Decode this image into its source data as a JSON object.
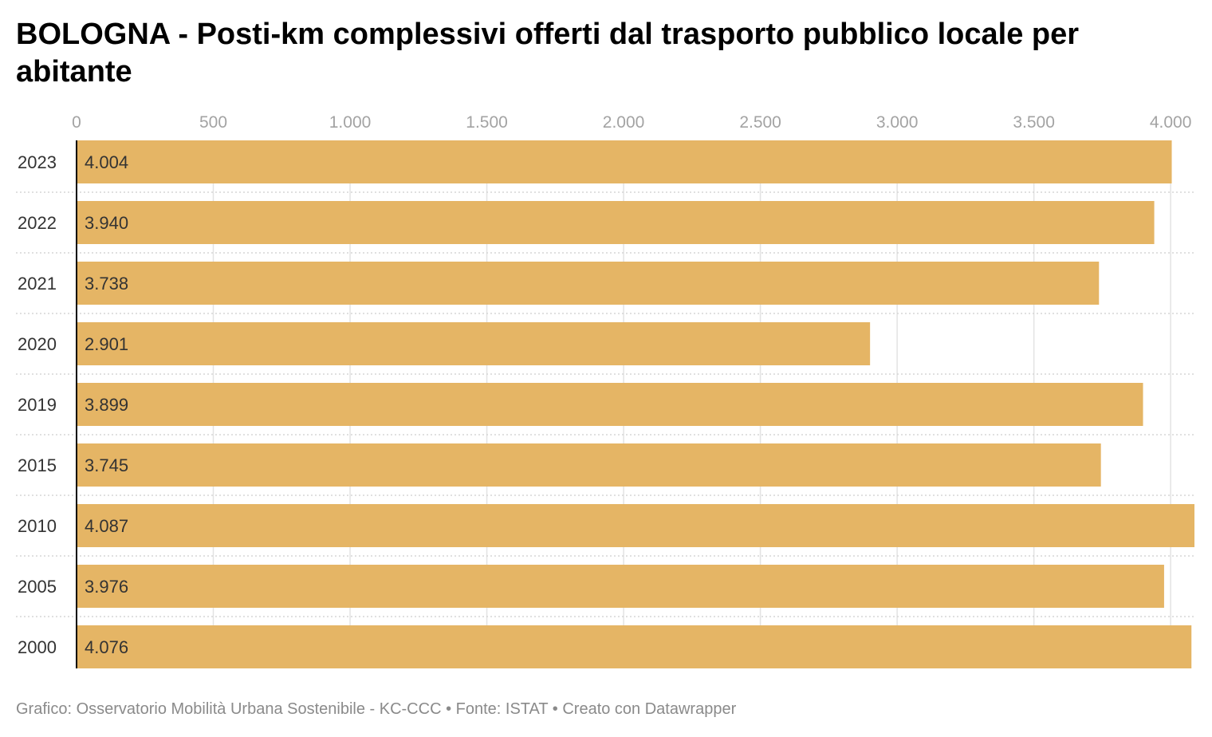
{
  "chart_data": {
    "type": "bar",
    "orientation": "horizontal",
    "title": "BOLOGNA - Posti-km complessivi offerti dal trasporto pubblico locale per abitante",
    "xlabel": "",
    "ylabel": "",
    "categories": [
      "2023",
      "2022",
      "2021",
      "2020",
      "2019",
      "2015",
      "2010",
      "2005",
      "2000"
    ],
    "values": [
      4004,
      3940,
      3738,
      2901,
      3899,
      3745,
      4087,
      3976,
      4076
    ],
    "value_labels": [
      "4.004",
      "3.940",
      "3.738",
      "2.901",
      "3.899",
      "3.745",
      "4.087",
      "3.976",
      "4.076"
    ],
    "xlim": [
      0,
      4087
    ],
    "x_ticks": [
      0,
      500,
      1000,
      1500,
      2000,
      2500,
      3000,
      3500,
      4000
    ],
    "x_tick_labels": [
      "0",
      "500",
      "1.000",
      "1.500",
      "2.000",
      "2.500",
      "3.000",
      "3.500",
      "4.000"
    ],
    "x_axis_position": "top",
    "grid": true,
    "legend": "none",
    "colors": {
      "bar": "#e5b565",
      "tick_text": "#a3a3a3",
      "value_text": "#333333",
      "category_text": "#333333",
      "gridline": "#e3e3e3",
      "separator": "#d6d6d6",
      "axis": "#000000"
    }
  },
  "footer": {
    "text": "Grafico: Osservatorio Mobilità Urbana Sostenibile - KC-CCC • Fonte: ISTAT • Creato con Datawrapper"
  }
}
